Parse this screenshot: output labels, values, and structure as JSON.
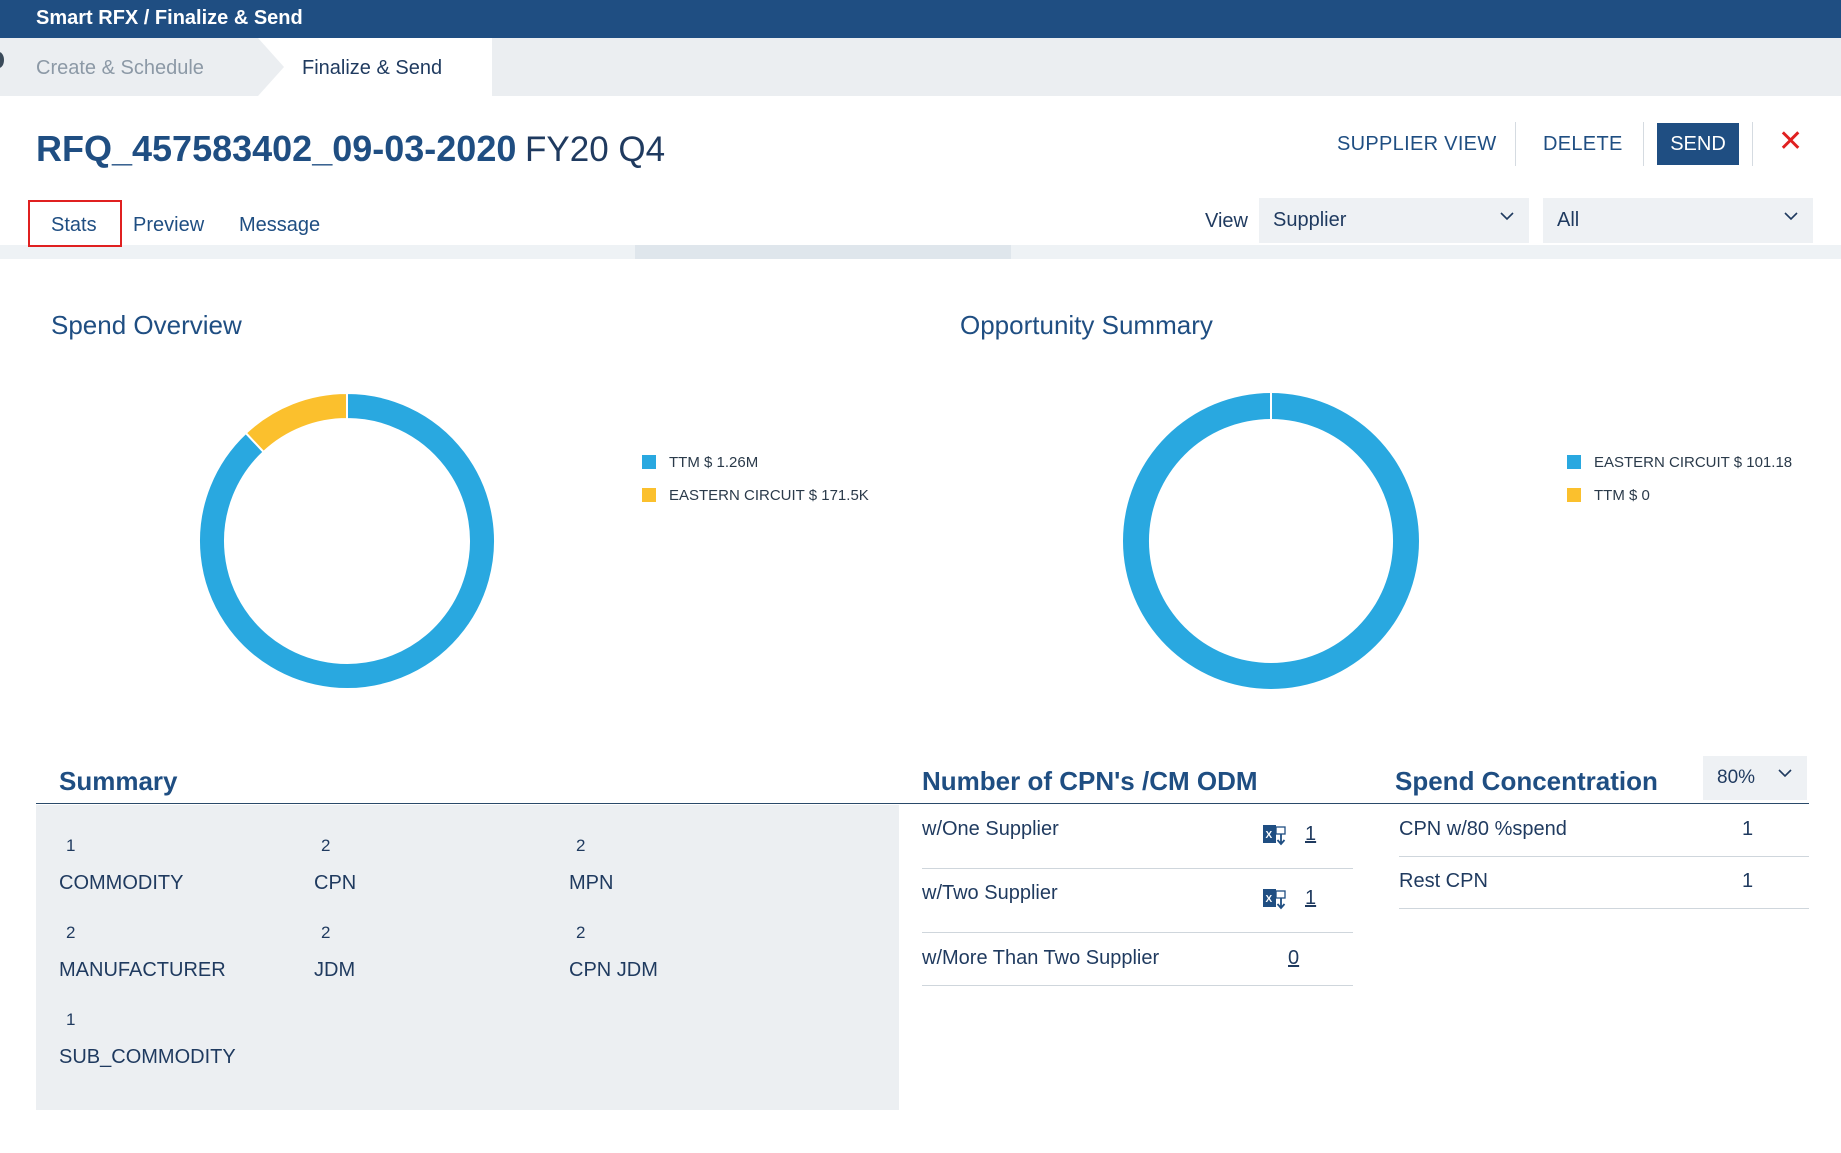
{
  "header": {
    "title": "Smart RFX / Finalize & Send"
  },
  "breadcrumb": {
    "step1": "Create & Schedule",
    "step2": "Finalize & Send"
  },
  "rfq": {
    "id": "RFQ_457583402_09-03-2020",
    "period": "FY20 Q4"
  },
  "actions": {
    "supplier_view": "SUPPLIER VIEW",
    "delete": "DELETE",
    "send": "SEND",
    "close": "✕"
  },
  "tabs": [
    {
      "label": "Stats"
    },
    {
      "label": "Preview"
    },
    {
      "label": "Message"
    }
  ],
  "view": {
    "label": "View",
    "select1": "Supplier",
    "select2": "All"
  },
  "spend_overview": {
    "title": "Spend Overview",
    "legend": [
      {
        "label": "TTM $ 1.26M",
        "color": "#29a8e0"
      },
      {
        "label": "EASTERN CIRCUIT $ 171.5K",
        "color": "#fbc02d"
      }
    ]
  },
  "opportunity_summary": {
    "title": "Opportunity Summary",
    "legend": [
      {
        "label": "EASTERN CIRCUIT $ 101.18",
        "color": "#29a8e0"
      },
      {
        "label": "TTM $ 0",
        "color": "#fbc02d"
      }
    ]
  },
  "chart_data": [
    {
      "type": "pie",
      "title": "Spend Overview",
      "categories": [
        "TTM",
        "EASTERN CIRCUIT"
      ],
      "values": [
        1260000,
        171500
      ],
      "colors": [
        "#29a8e0",
        "#fbc02d"
      ],
      "donut": true,
      "legend": "right"
    },
    {
      "type": "pie",
      "title": "Opportunity Summary",
      "categories": [
        "EASTERN CIRCUIT",
        "TTM"
      ],
      "values": [
        101.18,
        0
      ],
      "colors": [
        "#29a8e0",
        "#fbc02d"
      ],
      "donut": true,
      "legend": "right"
    }
  ],
  "summary": {
    "title": "Summary",
    "items": [
      {
        "count": "1",
        "label": "COMMODITY"
      },
      {
        "count": "2",
        "label": "CPN"
      },
      {
        "count": "2",
        "label": "MPN"
      },
      {
        "count": "2",
        "label": "MANUFACTURER"
      },
      {
        "count": "2",
        "label": "JDM"
      },
      {
        "count": "2",
        "label": "CPN JDM"
      },
      {
        "count": "1",
        "label": "SUB_COMMODITY"
      }
    ]
  },
  "cpn": {
    "title": "Number of CPN's /CM ODM",
    "rows": [
      {
        "label": "w/One Supplier",
        "value": "1"
      },
      {
        "label": "w/Two Supplier",
        "value": "1"
      },
      {
        "label": "w/More Than Two Supplier",
        "value": "0"
      }
    ]
  },
  "spend_concentration": {
    "title": "Spend Concentration",
    "percent": "80%",
    "rows": [
      {
        "label": "CPN w/80 %spend",
        "value": "1"
      },
      {
        "label": "Rest CPN",
        "value": "1"
      }
    ]
  }
}
